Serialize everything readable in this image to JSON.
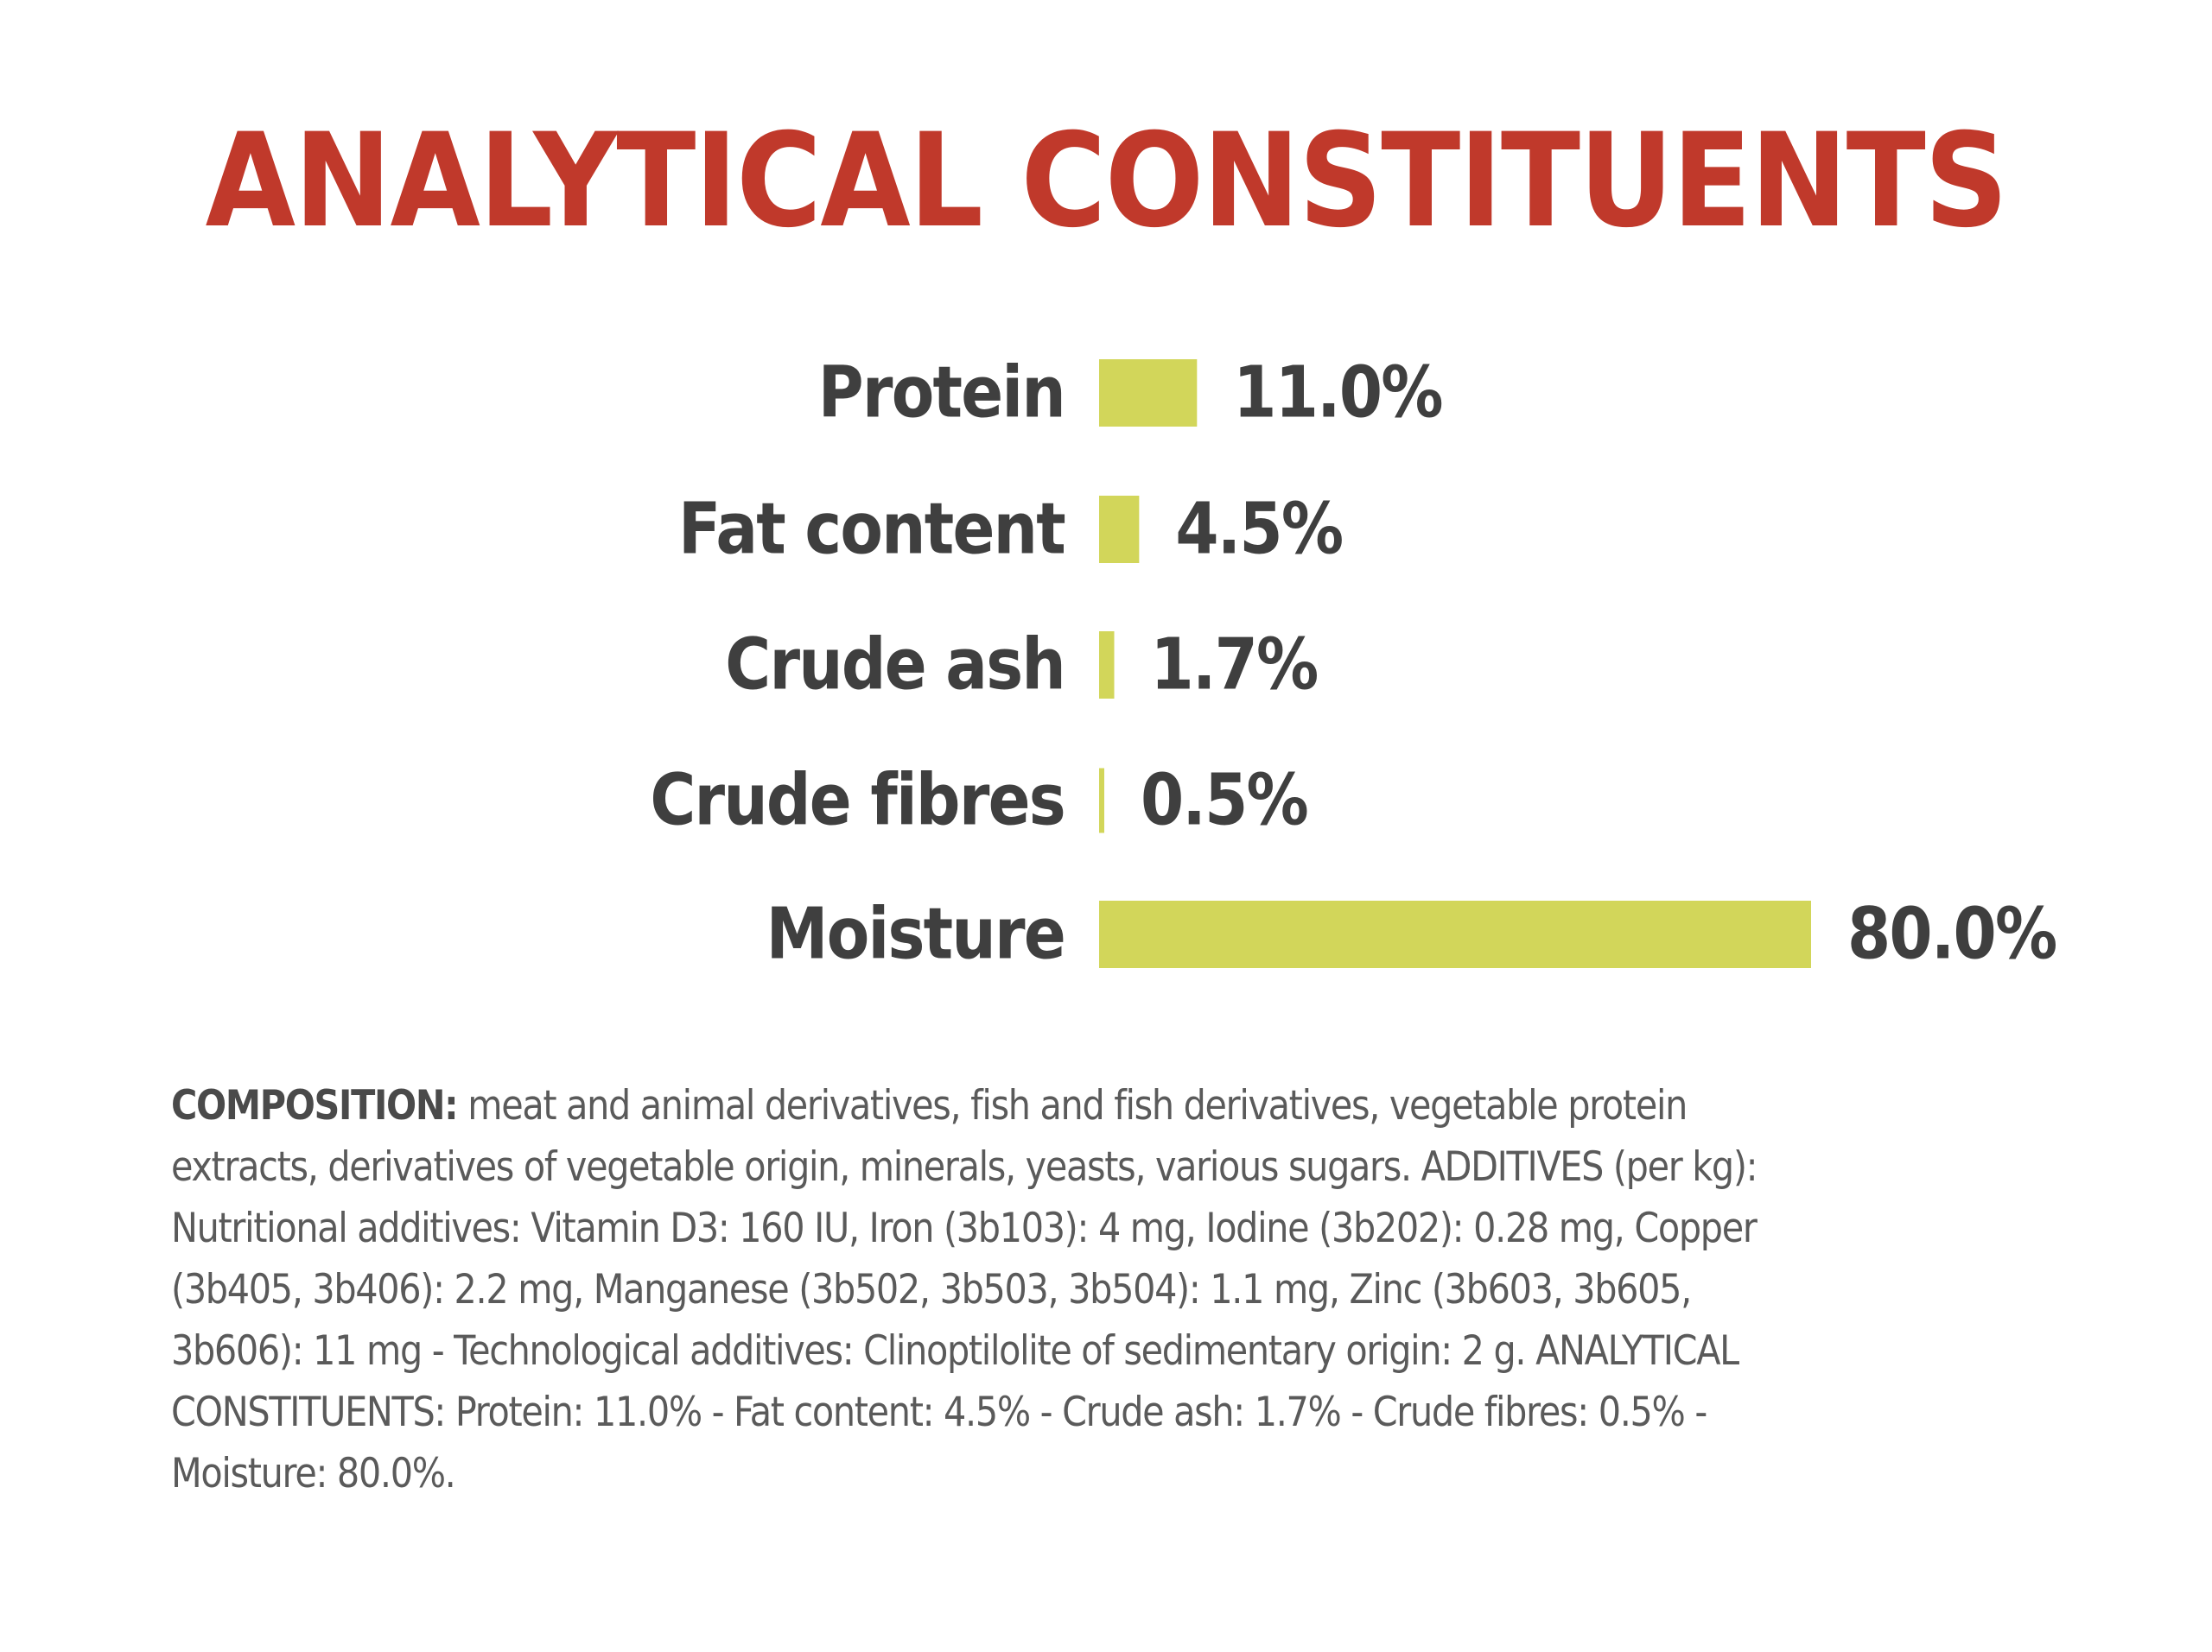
{
  "colors": {
    "title": "#c0392b",
    "bar": "#d2d65a",
    "label": "#3f3f3f",
    "body_text": "#5a5a5a"
  },
  "chart_data": {
    "type": "bar",
    "orientation": "horizontal",
    "title": "ANALYTICAL CONSTITUENTS",
    "categories": [
      "Protein",
      "Fat content",
      "Crude ash",
      "Crude fibres",
      "Moisture"
    ],
    "values": [
      11.0,
      4.5,
      1.7,
      0.5,
      80.0
    ],
    "value_labels": [
      "11.0%",
      "4.5%",
      "1.7%",
      "0.5%",
      "80.0%"
    ],
    "unit": "%",
    "xlim": [
      0,
      80
    ],
    "grid": false,
    "legend": "none"
  },
  "composition": {
    "lead": "COMPOSITION:",
    "text": " meat and animal derivatives, fish and fish derivatives, vegetable protein extracts, derivatives of vegetable origin, minerals, yeasts, various sugars. ADDITIVES (per kg): Nutritional additives: Vitamin D3: 160 IU, Iron (3b103): 4 mg, Iodine (3b202): 0.28 mg, Copper (3b405, 3b406): 2.2 mg, Manganese (3b502, 3b503, 3b504): 1.1 mg, Zinc (3b603, 3b605, 3b606): 11 mg - Technological additives: Clinoptilolite of sedimentary origin: 2 g. ANALYTICAL CONSTITUENTS: Protein: 11.0% - Fat content: 4.5% - Crude ash: 1.7% - Crude fibres: 0.5% - Moisture: 80.0%."
  }
}
